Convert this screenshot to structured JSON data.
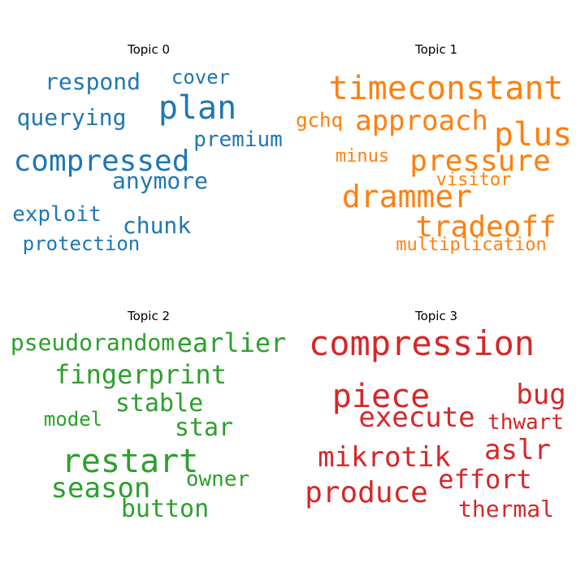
{
  "chart_data": {
    "type": "wordcloud",
    "topics": [
      {
        "title": "Topic 0",
        "color": "#1f77b4",
        "words": [
          "respond",
          "cover",
          "plan",
          "querying",
          "premium",
          "compressed",
          "anymore",
          "exploit",
          "chunk",
          "protection"
        ]
      },
      {
        "title": "Topic 1",
        "color": "#ff7f0e",
        "words": [
          "timeconstant",
          "gchq",
          "approach",
          "plus",
          "minus",
          "pressure",
          "visitor",
          "drammer",
          "tradeoff",
          "multiplication"
        ]
      },
      {
        "title": "Topic 2",
        "color": "#2ca02c",
        "words": [
          "pseudorandom",
          "earlier",
          "fingerprint",
          "stable",
          "model",
          "star",
          "restart",
          "owner",
          "season",
          "button"
        ]
      },
      {
        "title": "Topic 3",
        "color": "#d62728",
        "words": [
          "compression",
          "piece",
          "bug",
          "execute",
          "thwart",
          "mikrotik",
          "aslr",
          "effort",
          "produce",
          "thermal"
        ]
      }
    ]
  }
}
